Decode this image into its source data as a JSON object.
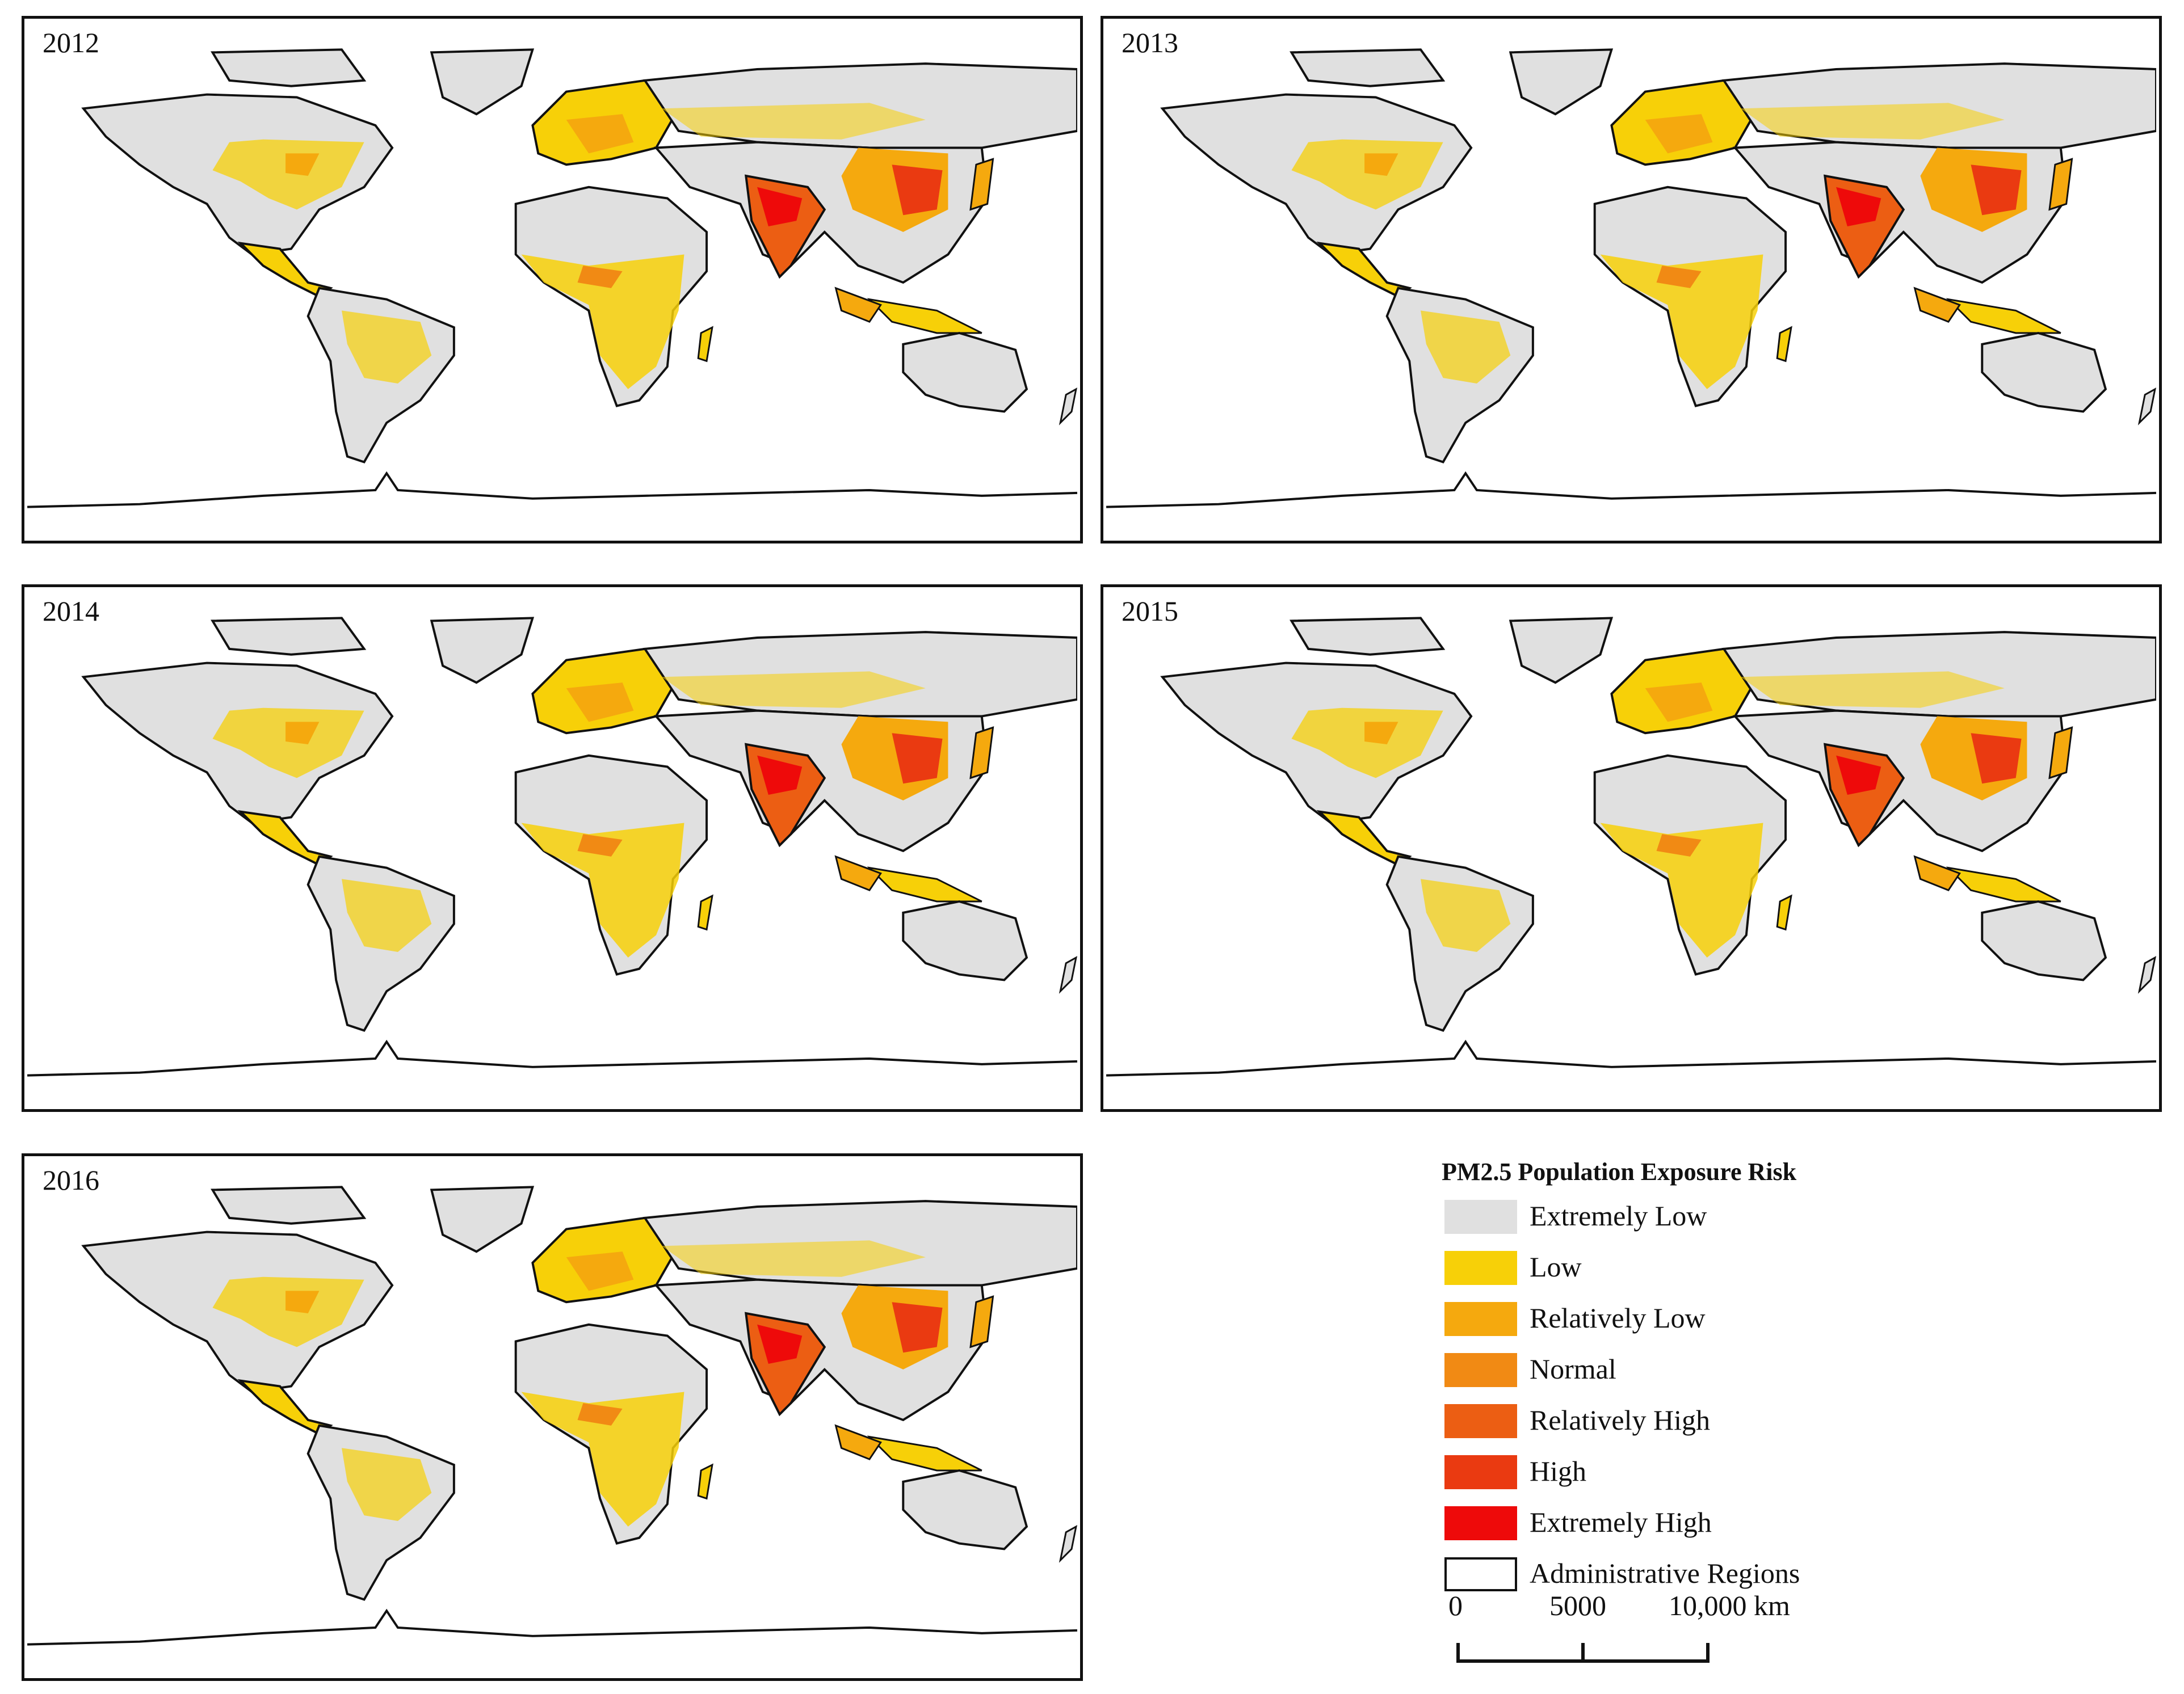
{
  "panels": [
    {
      "year": "2012"
    },
    {
      "year": "2013"
    },
    {
      "year": "2014"
    },
    {
      "year": "2015"
    },
    {
      "year": "2016"
    }
  ],
  "legend": {
    "title": "PM2.5 Population Exposure Risk",
    "items": [
      {
        "label": "Extremely Low",
        "color": "#e0e0e0"
      },
      {
        "label": "Low",
        "color": "#f7d008"
      },
      {
        "label": "Relatively Low",
        "color": "#f5a90e"
      },
      {
        "label": "Normal",
        "color": "#f18a14"
      },
      {
        "label": "Relatively High",
        "color": "#ec5e13"
      },
      {
        "label": "High",
        "color": "#ea3a11"
      },
      {
        "label": "Extremely High",
        "color": "#ee0a0a"
      },
      {
        "label": "Administrative Regions",
        "color": "#ffffff"
      }
    ]
  },
  "scale_bar": {
    "labels": [
      "0",
      "5000",
      "10,000 km"
    ]
  }
}
